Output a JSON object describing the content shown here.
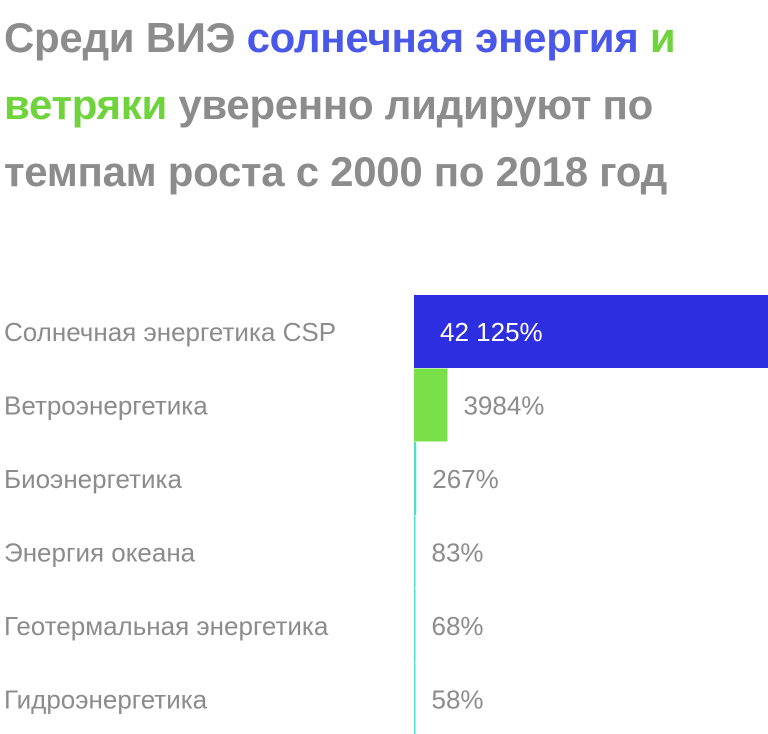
{
  "title": {
    "part1": "Среди ВИЭ ",
    "part2": "солнечная энергия",
    "part3": " ",
    "part4": "и ветряки",
    "part5": " уверенно лидируют по темпам роста с 2000 по 2018 год"
  },
  "colors": {
    "title_gray": "#8c8c8c",
    "highlight_blue": "#4a58ea",
    "highlight_green": "#6fd33c",
    "bar_blue": "#2c2ee0",
    "bar_green": "#7ae04a",
    "bar_teal": "#52dcc4",
    "value_on_bar": "#ffffff",
    "value_gray": "#8c8c8c"
  },
  "chart_data": {
    "type": "bar",
    "orientation": "horizontal",
    "categories": [
      "Солнечная энергетика CSP",
      "Ветроэнергетика",
      "Биоэнергетика",
      "Энергия океана",
      "Геотермальная энергетика",
      "Гидроэнергетика"
    ],
    "values": [
      42125,
      3984,
      267,
      83,
      68,
      58
    ],
    "value_labels": [
      "42 125%",
      "3984%",
      "267%",
      "83%",
      "68%",
      "58%"
    ],
    "unit": "%",
    "xlim": [
      0,
      42125
    ],
    "grid": false,
    "legend": "none"
  }
}
